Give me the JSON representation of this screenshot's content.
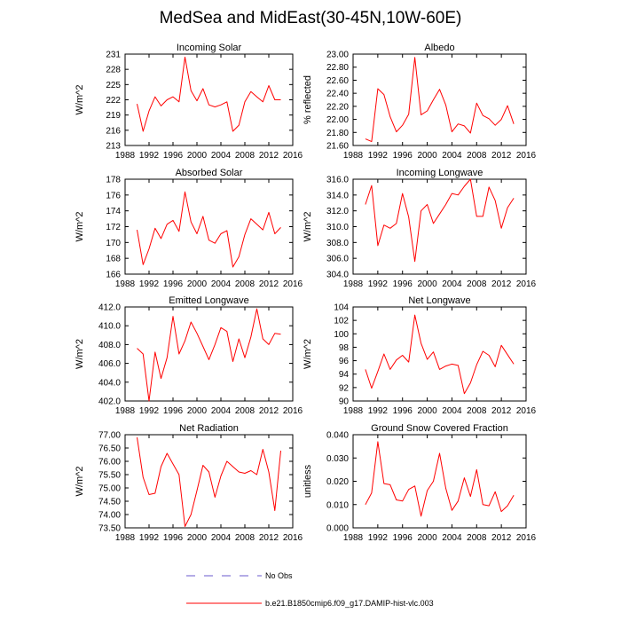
{
  "title": "MedSea and MidEast(30-45N,10W-60E)",
  "colors": {
    "model": "#ff0000",
    "obs": "#6a5acd",
    "axis": "#000000"
  },
  "legend": {
    "obs_label": "No Obs",
    "model_label": "b.e21.B1850cmip6.f09_g17.DAMIP-hist-vlc.003"
  },
  "chart_data": [
    {
      "type": "line",
      "title": "Incoming Solar",
      "xlabel": "",
      "ylabel": "W/m^2",
      "xlim": [
        1988,
        2016
      ],
      "xticks": [
        1988,
        1992,
        1996,
        2000,
        2004,
        2008,
        2012,
        2016
      ],
      "xtick_labels": [
        "1988",
        "1992",
        "1996",
        "2000",
        "2004",
        "2008",
        "2012",
        "2016"
      ],
      "ylim": [
        213,
        231
      ],
      "yticks": [
        213,
        216,
        219,
        222,
        225,
        228,
        231
      ],
      "ytick_labels": [
        "213",
        "216",
        "219",
        "222",
        "225",
        "228",
        "231"
      ],
      "series": [
        {
          "name": "b.e21.B1850cmip6.f09_g17.DAMIP-hist-vlc.003",
          "x": [
            1990,
            1991,
            1992,
            1993,
            1994,
            1995,
            1996,
            1997,
            1998,
            1999,
            2000,
            2001,
            2002,
            2003,
            2004,
            2005,
            2006,
            2007,
            2008,
            2009,
            2010,
            2011,
            2012,
            2013,
            2014
          ],
          "values": [
            221.2,
            215.8,
            219.8,
            222.6,
            220.8,
            222.0,
            222.6,
            221.6,
            230.4,
            223.8,
            221.8,
            224.2,
            221.0,
            220.6,
            221.0,
            221.6,
            215.8,
            217.0,
            221.6,
            223.6,
            222.6,
            221.6,
            224.8,
            222.0,
            222.0
          ]
        }
      ]
    },
    {
      "type": "line",
      "title": "Albedo",
      "xlabel": "",
      "ylabel": "% reflected",
      "xlim": [
        1988,
        2016
      ],
      "xticks": [
        1988,
        1992,
        1996,
        2000,
        2004,
        2008,
        2012,
        2016
      ],
      "xtick_labels": [
        "1988",
        "1992",
        "1996",
        "2000",
        "2004",
        "2008",
        "2012",
        "2016"
      ],
      "ylim": [
        21.6,
        23.0
      ],
      "yticks": [
        21.6,
        21.8,
        22.0,
        22.2,
        22.4,
        22.6,
        22.8,
        23.0
      ],
      "ytick_labels": [
        "21.60",
        "21.80",
        "22.00",
        "22.20",
        "22.40",
        "22.60",
        "22.80",
        "23.00"
      ],
      "series": [
        {
          "name": "b.e21.B1850cmip6.f09_g17.DAMIP-hist-vlc.003",
          "x": [
            1990,
            1991,
            1992,
            1993,
            1994,
            1995,
            1996,
            1997,
            1998,
            1999,
            2000,
            2001,
            2002,
            2003,
            2004,
            2005,
            2006,
            2007,
            2008,
            2009,
            2010,
            2011,
            2012,
            2013,
            2014
          ],
          "values": [
            21.7,
            21.66,
            22.47,
            22.38,
            22.04,
            21.81,
            21.91,
            22.08,
            22.95,
            22.07,
            22.13,
            22.3,
            22.46,
            22.22,
            21.81,
            21.93,
            21.9,
            21.79,
            22.25,
            22.06,
            22.01,
            21.91,
            22.0,
            22.21,
            21.93
          ]
        }
      ]
    },
    {
      "type": "line",
      "title": "Absorbed Solar",
      "xlabel": "",
      "ylabel": "W/m^2",
      "xlim": [
        1988,
        2016
      ],
      "xticks": [
        1988,
        1992,
        1996,
        2000,
        2004,
        2008,
        2012,
        2016
      ],
      "xtick_labels": [
        "1988",
        "1992",
        "1996",
        "2000",
        "2004",
        "2008",
        "2012",
        "2016"
      ],
      "ylim": [
        166,
        178
      ],
      "yticks": [
        166,
        168,
        170,
        172,
        174,
        176,
        178
      ],
      "ytick_labels": [
        "166",
        "168",
        "170",
        "172",
        "174",
        "176",
        "178"
      ],
      "series": [
        {
          "name": "b.e21.B1850cmip6.f09_g17.DAMIP-hist-vlc.003",
          "x": [
            1990,
            1991,
            1992,
            1993,
            1994,
            1995,
            1996,
            1997,
            1998,
            1999,
            2000,
            2001,
            2002,
            2003,
            2004,
            2005,
            2006,
            2007,
            2008,
            2009,
            2010,
            2011,
            2012,
            2013,
            2014
          ],
          "values": [
            171.6,
            167.2,
            169.2,
            171.8,
            170.5,
            172.3,
            172.8,
            171.4,
            176.4,
            172.6,
            171.1,
            173.3,
            170.3,
            169.9,
            171.1,
            171.5,
            166.9,
            168.2,
            171.0,
            173.0,
            172.3,
            171.6,
            173.8,
            171.1,
            171.9
          ]
        }
      ]
    },
    {
      "type": "line",
      "title": "Incoming Longwave",
      "xlabel": "",
      "ylabel": "W/m^2",
      "xlim": [
        1988,
        2016
      ],
      "xticks": [
        1988,
        1992,
        1996,
        2000,
        2004,
        2008,
        2012,
        2016
      ],
      "xtick_labels": [
        "1988",
        "1992",
        "1996",
        "2000",
        "2004",
        "2008",
        "2012",
        "2016"
      ],
      "ylim": [
        304,
        316
      ],
      "yticks": [
        304,
        306,
        308,
        310,
        312,
        314,
        316
      ],
      "ytick_labels": [
        "304.0",
        "306.0",
        "308.0",
        "310.0",
        "312.0",
        "314.0",
        "316.0"
      ],
      "series": [
        {
          "name": "b.e21.B1850cmip6.f09_g17.DAMIP-hist-vlc.003",
          "x": [
            1990,
            1991,
            1992,
            1993,
            1994,
            1995,
            1996,
            1997,
            1998,
            1999,
            2000,
            2001,
            2002,
            2003,
            2004,
            2005,
            2006,
            2007,
            2008,
            2009,
            2010,
            2011,
            2012,
            2013,
            2014
          ],
          "values": [
            312.8,
            315.2,
            307.6,
            310.2,
            309.8,
            310.4,
            314.2,
            311.2,
            305.6,
            312.0,
            312.8,
            310.4,
            311.6,
            312.8,
            314.2,
            314.0,
            315.1,
            316.0,
            311.3,
            311.3,
            315.0,
            313.3,
            309.8,
            312.4,
            313.6
          ]
        }
      ]
    },
    {
      "type": "line",
      "title": "Emitted Longwave",
      "xlabel": "",
      "ylabel": "W/m^2",
      "xlim": [
        1988,
        2016
      ],
      "xticks": [
        1988,
        1992,
        1996,
        2000,
        2004,
        2008,
        2012,
        2016
      ],
      "xtick_labels": [
        "1988",
        "1992",
        "1996",
        "2000",
        "2004",
        "2008",
        "2012",
        "2016"
      ],
      "ylim": [
        402,
        412
      ],
      "yticks": [
        402,
        404,
        406,
        408,
        410,
        412
      ],
      "ytick_labels": [
        "402.0",
        "404.0",
        "406.0",
        "408.0",
        "410.0",
        "412.0"
      ],
      "series": [
        {
          "name": "b.e21.B1850cmip6.f09_g17.DAMIP-hist-vlc.003",
          "x": [
            1990,
            1991,
            1992,
            1993,
            1994,
            1995,
            1996,
            1997,
            1998,
            1999,
            2000,
            2001,
            2002,
            2003,
            2004,
            2005,
            2006,
            2007,
            2008,
            2009,
            2010,
            2011,
            2012,
            2013,
            2014
          ],
          "values": [
            407.6,
            407.0,
            402.0,
            407.2,
            404.4,
            406.6,
            411.0,
            407.0,
            408.4,
            410.4,
            409.2,
            407.8,
            406.4,
            408.0,
            409.8,
            409.4,
            406.2,
            408.6,
            406.6,
            408.8,
            411.8,
            408.6,
            408.0,
            409.2,
            409.1
          ]
        }
      ]
    },
    {
      "type": "line",
      "title": "Net Longwave",
      "xlabel": "",
      "ylabel": "W/m^2",
      "xlim": [
        1988,
        2016
      ],
      "xticks": [
        1988,
        1992,
        1996,
        2000,
        2004,
        2008,
        2012,
        2016
      ],
      "xtick_labels": [
        "1988",
        "1992",
        "1996",
        "2000",
        "2004",
        "2008",
        "2012",
        "2016"
      ],
      "ylim": [
        90,
        104
      ],
      "yticks": [
        90,
        92,
        94,
        96,
        98,
        100,
        102,
        104
      ],
      "ytick_labels": [
        "90",
        "92",
        "94",
        "96",
        "98",
        "100",
        "102",
        "104"
      ],
      "series": [
        {
          "name": "b.e21.B1850cmip6.f09_g17.DAMIP-hist-vlc.003",
          "x": [
            1990,
            1991,
            1992,
            1993,
            1994,
            1995,
            1996,
            1997,
            1998,
            1999,
            2000,
            2001,
            2002,
            2003,
            2004,
            2005,
            2006,
            2007,
            2008,
            2009,
            2010,
            2011,
            2012,
            2013,
            2014
          ],
          "values": [
            94.7,
            91.9,
            94.4,
            97.0,
            94.7,
            96.1,
            96.8,
            95.8,
            102.8,
            98.6,
            96.2,
            97.3,
            94.7,
            95.2,
            95.5,
            95.3,
            91.1,
            92.7,
            95.4,
            97.4,
            96.8,
            95.1,
            98.3,
            96.9,
            95.5
          ]
        }
      ]
    },
    {
      "type": "line",
      "title": "Net Radiation",
      "xlabel": "",
      "ylabel": "W/m^2",
      "xlim": [
        1988,
        2016
      ],
      "xticks": [
        1988,
        1992,
        1996,
        2000,
        2004,
        2008,
        2012,
        2016
      ],
      "xtick_labels": [
        "1988",
        "1992",
        "1996",
        "2000",
        "2004",
        "2008",
        "2012",
        "2016"
      ],
      "ylim": [
        73.5,
        77.0
      ],
      "yticks": [
        73.5,
        74.0,
        74.5,
        75.0,
        75.5,
        76.0,
        76.5,
        77.0
      ],
      "ytick_labels": [
        "73.50",
        "74.00",
        "74.50",
        "75.00",
        "75.50",
        "76.00",
        "76.50",
        "77.00"
      ],
      "series": [
        {
          "name": "b.e21.B1850cmip6.f09_g17.DAMIP-hist-vlc.003",
          "x": [
            1990,
            1991,
            1992,
            1993,
            1994,
            1995,
            1996,
            1997,
            1998,
            1999,
            2000,
            2001,
            2002,
            2003,
            2004,
            2005,
            2006,
            2007,
            2008,
            2009,
            2010,
            2011,
            2012,
            2013,
            2014
          ],
          "values": [
            76.9,
            75.4,
            74.75,
            74.8,
            75.8,
            76.3,
            75.9,
            75.5,
            73.55,
            74.0,
            74.9,
            75.85,
            75.6,
            74.65,
            75.45,
            76.0,
            75.8,
            75.6,
            75.55,
            75.65,
            75.5,
            76.45,
            75.6,
            74.15,
            76.4
          ]
        }
      ]
    },
    {
      "type": "line",
      "title": "Ground Snow Covered Fraction",
      "xlabel": "",
      "ylabel": "unitless",
      "xlim": [
        1988,
        2016
      ],
      "xticks": [
        1988,
        1992,
        1996,
        2000,
        2004,
        2008,
        2012,
        2016
      ],
      "xtick_labels": [
        "1988",
        "1992",
        "1996",
        "2000",
        "2004",
        "2008",
        "2012",
        "2016"
      ],
      "ylim": [
        0.0,
        0.04
      ],
      "yticks": [
        0.0,
        0.01,
        0.02,
        0.03,
        0.04
      ],
      "ytick_labels": [
        "0.000",
        "0.010",
        "0.020",
        "0.030",
        "0.040"
      ],
      "series": [
        {
          "name": "b.e21.B1850cmip6.f09_g17.DAMIP-hist-vlc.003",
          "x": [
            1990,
            1991,
            1992,
            1993,
            1994,
            1995,
            1996,
            1997,
            1998,
            1999,
            2000,
            2001,
            2002,
            2003,
            2004,
            2005,
            2006,
            2007,
            2008,
            2009,
            2010,
            2011,
            2012,
            2013,
            2014
          ],
          "values": [
            0.01,
            0.015,
            0.037,
            0.019,
            0.0185,
            0.012,
            0.0115,
            0.0165,
            0.018,
            0.005,
            0.016,
            0.02,
            0.032,
            0.017,
            0.0075,
            0.0115,
            0.0215,
            0.0135,
            0.025,
            0.01,
            0.0095,
            0.0155,
            0.007,
            0.0095,
            0.014
          ]
        }
      ]
    }
  ]
}
